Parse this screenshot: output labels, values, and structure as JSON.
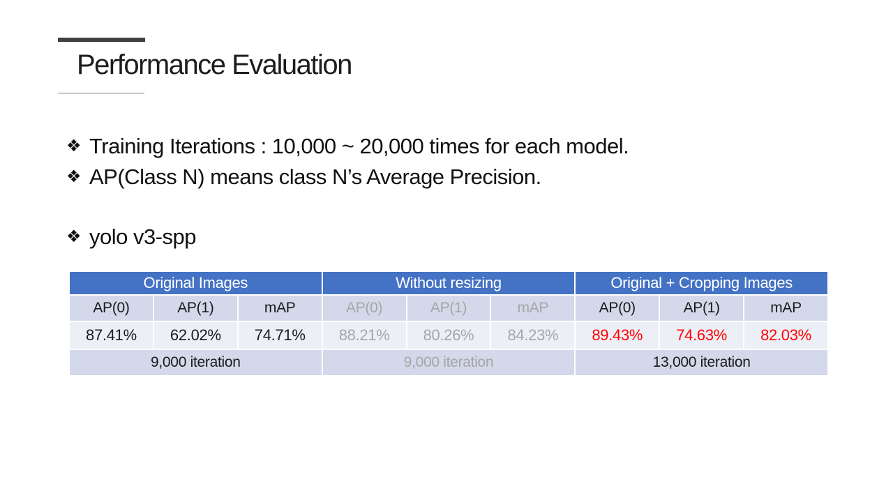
{
  "slide": {
    "title": "Performance Evaluation",
    "bullet_glyph": "❖",
    "bullets": [
      "Training Iterations : 10,000 ~ 20,000 times for each model.",
      "AP(Class N) means class N’s Average Precision.",
      "yolo v3-spp"
    ]
  },
  "table": {
    "groups": [
      {
        "label": "Original Images",
        "columns": [
          "AP(0)",
          "AP(1)",
          "mAP"
        ],
        "values": [
          "87.41%",
          "62.02%",
          "74.71%"
        ],
        "iteration": "9,000 iteration",
        "emphasis": "default"
      },
      {
        "label": "Without resizing",
        "columns": [
          "AP(0)",
          "AP(1)",
          "mAP"
        ],
        "values": [
          "88.21%",
          "80.26%",
          "84.23%"
        ],
        "iteration": "9,000 iteration",
        "emphasis": "muted"
      },
      {
        "label": "Original + Cropping Images",
        "columns": [
          "AP(0)",
          "AP(1)",
          "mAP"
        ],
        "values": [
          "89.43%",
          "74.63%",
          "82.03%"
        ],
        "iteration": "13,000 iteration",
        "emphasis": "highlight-red"
      }
    ],
    "colors": {
      "header_bg": "#4472C4",
      "header_text": "#FFFFFF",
      "band_bg": "#D3D8EA",
      "light_row_bg": "#EDEFF6",
      "muted_text": "#A6A6A6",
      "highlight_text": "#FF0000",
      "body_text": "#1A1A1A"
    }
  }
}
